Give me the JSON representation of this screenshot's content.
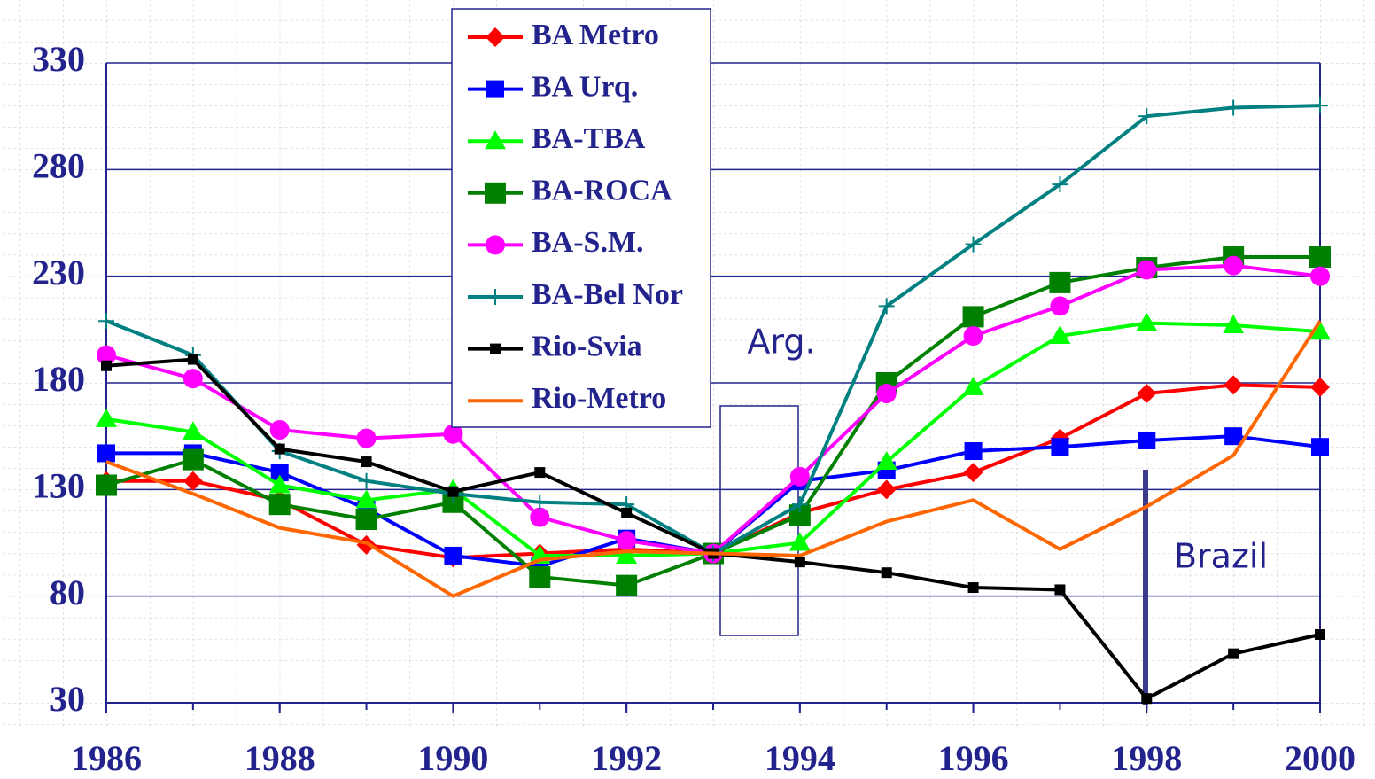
{
  "chart_data": {
    "type": "line",
    "x": [
      1986,
      1987,
      1988,
      1989,
      1990,
      1991,
      1992,
      1993,
      1994,
      1995,
      1996,
      1997,
      1998,
      1999,
      2000
    ],
    "xlim": [
      1986,
      2000
    ],
    "xticks": [
      1986,
      1988,
      1990,
      1992,
      1994,
      1996,
      1998,
      2000
    ],
    "ylim": [
      30,
      330
    ],
    "yticks": [
      30,
      80,
      130,
      180,
      230,
      280,
      330
    ],
    "grid": true,
    "annotations": [
      "Arg.",
      "Brazil"
    ],
    "series": [
      {
        "name": "BA Metro",
        "color": "#ff0000",
        "marker": "diamond",
        "values": [
          134,
          134,
          125,
          104,
          98,
          100,
          102,
          100,
          119,
          130,
          138,
          154,
          175,
          179,
          178
        ]
      },
      {
        "name": "BA Urq.",
        "color": "#0000ff",
        "marker": "square",
        "values": [
          147,
          147,
          138,
          121,
          99,
          94,
          107,
          100,
          134,
          139,
          148,
          150,
          153,
          155,
          150
        ]
      },
      {
        "name": "BA-TBA",
        "color": "#00ff00",
        "marker": "triangle",
        "values": [
          163,
          157,
          132,
          125,
          130,
          99,
          99,
          100,
          105,
          143,
          178,
          202,
          208,
          207,
          204
        ]
      },
      {
        "name": "BA-ROCA",
        "color": "#008000",
        "marker": "bigsquare",
        "values": [
          132,
          144,
          123,
          116,
          124,
          89,
          85,
          100,
          118,
          180,
          211,
          227,
          234,
          239,
          239
        ]
      },
      {
        "name": "BA-S.M.",
        "color": "#ff00ff",
        "marker": "circle",
        "values": [
          193,
          182,
          158,
          154,
          156,
          117,
          106,
          100,
          136,
          175,
          202,
          216,
          233,
          235,
          230
        ]
      },
      {
        "name": "BA-Bel Nor",
        "color": "#008080",
        "marker": "plus",
        "values": [
          209,
          193,
          148,
          134,
          128,
          124,
          123,
          100,
          123,
          216,
          245,
          273,
          305,
          309,
          310
        ]
      },
      {
        "name": "Rio-Svia",
        "color": "#000000",
        "marker": "smallsquare",
        "values": [
          188,
          191,
          149,
          143,
          129,
          138,
          119,
          100,
          96,
          91,
          84,
          83,
          32,
          53,
          62
        ]
      },
      {
        "name": "Rio-Metro",
        "color": "#ff6600",
        "marker": "none",
        "values": [
          143,
          128,
          112,
          105,
          80,
          97,
          101,
          100,
          99,
          115,
          125,
          102,
          122,
          146,
          209
        ]
      }
    ]
  }
}
